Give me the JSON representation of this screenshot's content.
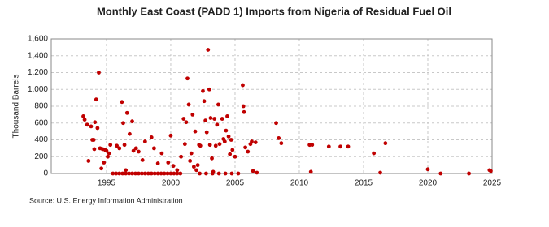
{
  "chart_data": {
    "type": "scatter",
    "title": "Monthly East Coast (PADD 1) Imports from Nigeria of Residual Fuel Oil",
    "y_label": "Thousand Barrels",
    "source": "Source: U.S. Energy Information Administration",
    "color": "#c00000",
    "grid": true,
    "xlim": [
      1990.7,
      2025
    ],
    "ylim": [
      0,
      1600
    ],
    "xticks": [
      1995,
      2000,
      2005,
      2010,
      2015,
      2020,
      2025
    ],
    "yticks": [
      0,
      200,
      400,
      600,
      800,
      {
        "value": 1000,
        "label": "1,000"
      },
      {
        "value": 1200,
        "label": "1,200"
      },
      {
        "value": 1400,
        "label": "1,400"
      },
      {
        "value": 1600,
        "label": "1,600"
      }
    ],
    "x": [
      1993.2,
      1993.3,
      1993.5,
      1993.6,
      1993.8,
      1993.9,
      1994.0,
      1994.05,
      1994.1,
      1994.2,
      1994.3,
      1994.4,
      1994.5,
      1994.6,
      1994.7,
      1994.8,
      1994.9,
      1995.0,
      1995.1,
      1995.2,
      1995.3,
      1995.8,
      1996.0,
      1996.2,
      1996.3,
      1996.4,
      1996.5,
      1996.6,
      1996.8,
      1997.0,
      1997.1,
      1997.3,
      1997.5,
      1997.8,
      1998.0,
      1998.5,
      1998.7,
      1999.0,
      1999.3,
      1999.8,
      2000.0,
      2000.2,
      2000.5,
      2000.8,
      2001.0,
      2001.1,
      2001.2,
      2001.3,
      2001.4,
      2001.5,
      2001.6,
      2001.7,
      2001.8,
      2001.9,
      2002.0,
      2002.1,
      2002.2,
      2002.3,
      2002.5,
      2002.6,
      2002.7,
      2002.8,
      2002.9,
      2003.0,
      2003.05,
      2003.1,
      2003.2,
      2003.3,
      2003.4,
      2003.5,
      2003.6,
      2003.7,
      2003.8,
      2004.0,
      2004.1,
      2004.2,
      2004.3,
      2004.4,
      2004.5,
      2004.6,
      2004.7,
      2004.8,
      2005.0,
      2005.6,
      2005.65,
      2005.7,
      2005.8,
      2006.0,
      2006.2,
      2006.3,
      2006.4,
      2006.6,
      2006.7,
      2008.2,
      2008.4,
      2008.6,
      2010.8,
      2010.9,
      2011.0,
      2012.3,
      2013.2,
      2013.8,
      2015.8,
      2016.3,
      2016.7,
      2020.0,
      2021.0,
      2023.2,
      2024.8,
      2024.9,
      1995.5,
      1995.75,
      1996.0,
      1996.25,
      1996.5,
      1996.75,
      1997.0,
      1997.25,
      1997.5,
      1997.75,
      1998.0,
      1998.25,
      1998.5,
      1998.75,
      1999.0,
      1999.25,
      1999.5,
      1999.75,
      2000.0,
      2000.25,
      2000.5,
      2000.75,
      2002.25,
      2002.75,
      2003.25,
      2003.75,
      2004.25,
      2004.75,
      2005.25
    ],
    "values": [
      680,
      640,
      580,
      150,
      560,
      400,
      400,
      290,
      610,
      880,
      540,
      1200,
      300,
      60,
      290,
      130,
      280,
      270,
      200,
      240,
      340,
      330,
      300,
      850,
      600,
      340,
      40,
      720,
      470,
      620,
      270,
      300,
      260,
      160,
      380,
      430,
      300,
      120,
      240,
      130,
      450,
      90,
      40,
      200,
      650,
      350,
      610,
      1130,
      820,
      150,
      240,
      700,
      80,
      500,
      40,
      100,
      340,
      330,
      980,
      860,
      630,
      490,
      1470,
      1000,
      340,
      660,
      180,
      20,
      650,
      330,
      580,
      820,
      350,
      650,
      410,
      380,
      510,
      680,
      440,
      230,
      400,
      280,
      200,
      1050,
      800,
      730,
      310,
      260,
      350,
      380,
      30,
      370,
      10,
      600,
      420,
      360,
      340,
      20,
      340,
      320,
      320,
      320,
      240,
      10,
      360,
      50,
      0,
      0,
      40,
      30,
      0,
      0,
      0,
      0,
      0,
      0,
      0,
      0,
      0,
      0,
      0,
      0,
      0,
      0,
      0,
      0,
      0,
      0,
      0,
      0,
      0,
      0,
      0,
      0,
      0,
      0,
      0,
      0,
      0
    ]
  }
}
